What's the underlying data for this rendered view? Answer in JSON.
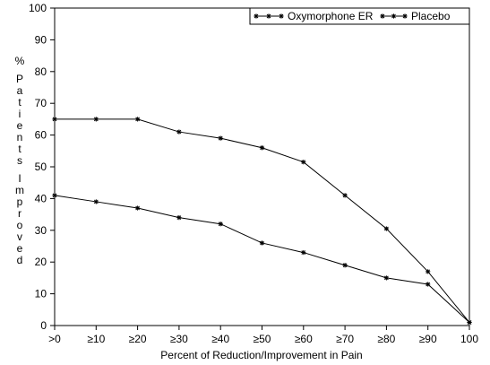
{
  "chart_data": {
    "type": "line",
    "categories": [
      ">0",
      "≥10",
      "≥20",
      "≥30",
      "≥40",
      "≥50",
      "≥60",
      "≥70",
      "≥80",
      "≥90",
      "100"
    ],
    "series": [
      {
        "name": "Oxymorphone ER",
        "values": [
          65,
          65,
          65,
          61,
          59,
          56,
          51.5,
          41,
          30.5,
          17,
          1
        ]
      },
      {
        "name": "Placebo",
        "values": [
          41,
          39,
          37,
          34,
          32,
          26,
          23,
          19,
          15,
          13,
          1
        ]
      }
    ],
    "title": "",
    "xlabel": "Percent of Reduction/Improvement in Pain",
    "ylabel": "% Patients Improved",
    "ylim": [
      0,
      100
    ],
    "yticks": [
      0,
      10,
      20,
      30,
      40,
      50,
      60,
      70,
      80,
      90,
      100
    ],
    "grid": false,
    "legend_position": "top-right",
    "line_color": "#000000"
  }
}
